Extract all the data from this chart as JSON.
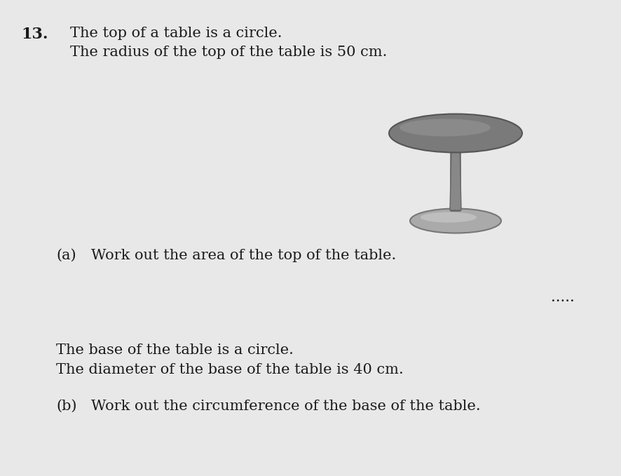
{
  "background_color": "#e8e8e8",
  "question_number": "13.",
  "line1": "The top of a table is a circle.",
  "line2": "The radius of the top of the table is 50 cm.",
  "part_a_label": "(a)",
  "part_a_text": "Work out the area of the top of the table.",
  "line3": "The base of the table is a circle.",
  "line4": "The diameter of the base of the table is 40 cm.",
  "part_b_label": "(b)",
  "part_b_text": "Work out the circumference of the base of the table.",
  "dots": ".....",
  "font_size_main": 15,
  "font_size_number": 16,
  "text_color": "#1a1a1a",
  "bold_number": true
}
